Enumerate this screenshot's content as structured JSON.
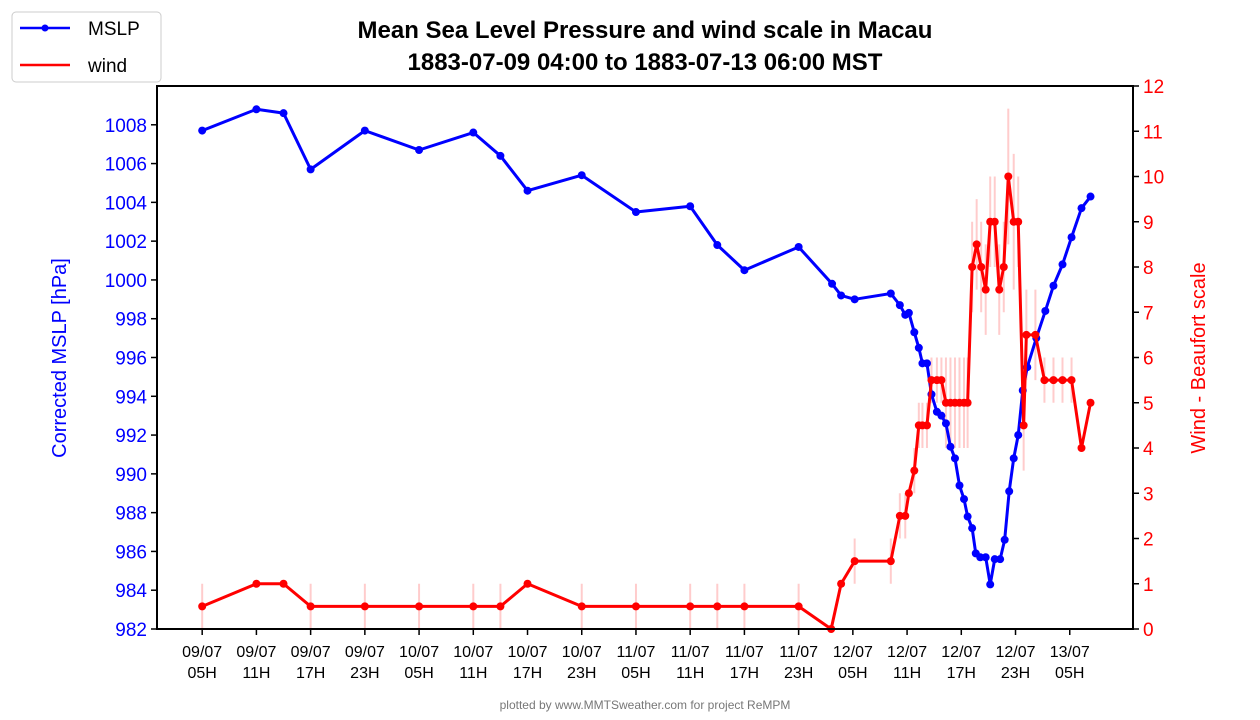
{
  "chart_data": {
    "type": "line",
    "title": "Mean Sea Level Pressure and wind scale in Macau",
    "subtitle": "1883-07-09 04:00 to 1883-07-13 06:00 MST",
    "x_units": "hours since 1883-07-09 00:00 MST",
    "xlim": [
      0,
      108
    ],
    "xticks": [
      5,
      11,
      17,
      23,
      29,
      35,
      41,
      47,
      53,
      59,
      65,
      71,
      77,
      83,
      89,
      95,
      101
    ],
    "xtick_labels": [
      [
        "09/07",
        "05H"
      ],
      [
        "09/07",
        "11H"
      ],
      [
        "09/07",
        "17H"
      ],
      [
        "09/07",
        "23H"
      ],
      [
        "10/07",
        "05H"
      ],
      [
        "10/07",
        "11H"
      ],
      [
        "10/07",
        "17H"
      ],
      [
        "10/07",
        "23H"
      ],
      [
        "11/07",
        "05H"
      ],
      [
        "11/07",
        "11H"
      ],
      [
        "11/07",
        "17H"
      ],
      [
        "11/07",
        "23H"
      ],
      [
        "12/07",
        "05H"
      ],
      [
        "12/07",
        "11H"
      ],
      [
        "12/07",
        "17H"
      ],
      [
        "12/07",
        "23H"
      ],
      [
        "13/07",
        "05H"
      ]
    ],
    "ylabel": "Corrected MSLP [hPa]",
    "ylim": [
      982,
      1010
    ],
    "yticks": [
      982,
      984,
      986,
      988,
      990,
      992,
      994,
      996,
      998,
      1000,
      1002,
      1004,
      1006,
      1008
    ],
    "y2label": "Wind - Beaufort scale",
    "y2lim": [
      0,
      12
    ],
    "y2ticks": [
      0,
      1,
      2,
      3,
      4,
      5,
      6,
      7,
      8,
      9,
      10,
      11,
      12
    ],
    "legend": {
      "position": "top-left",
      "entries": [
        "MSLP",
        "wind"
      ]
    },
    "footer": "plotted by www.MMTSweather.com for project ReMPM",
    "series": [
      {
        "name": "MSLP",
        "color": "#0000ff",
        "axis": "left",
        "x": [
          5,
          11,
          14,
          17,
          23,
          29,
          35,
          38,
          41,
          47,
          53,
          59,
          62,
          65,
          71,
          74.7,
          75.7,
          77.2,
          81.2,
          82.2,
          82.8,
          83.2,
          83.8,
          84.3,
          84.7,
          85.2,
          85.7,
          86.3,
          86.8,
          87.3,
          87.8,
          88.3,
          88.8,
          89.3,
          89.7,
          90.2,
          90.6,
          91.1,
          91.7,
          92.2,
          92.7,
          93.3,
          93.8,
          94.3,
          94.8,
          95.3,
          95.8,
          96.3,
          97.3,
          98.3,
          99.2,
          100.2,
          101.2,
          102.3,
          103.3
        ],
        "y": [
          1007.7,
          1008.8,
          1008.6,
          1005.7,
          1007.7,
          1006.7,
          1007.6,
          1006.4,
          1004.6,
          1005.4,
          1003.5,
          1003.8,
          1001.8,
          1000.5,
          1001.7,
          999.8,
          999.2,
          999.0,
          999.3,
          998.7,
          998.2,
          998.3,
          997.3,
          996.5,
          995.7,
          995.7,
          994.1,
          993.2,
          993.0,
          992.6,
          991.4,
          990.8,
          989.4,
          988.7,
          987.8,
          987.2,
          985.9,
          985.7,
          985.7,
          984.3,
          985.6,
          985.6,
          986.6,
          989.1,
          990.8,
          992.0,
          994.3,
          995.5,
          997.0,
          998.4,
          999.7,
          1000.8,
          1002.2,
          1003.7,
          1004.3
        ]
      },
      {
        "name": "wind",
        "color": "#ff0000",
        "axis": "right",
        "x": [
          5,
          11,
          14,
          17,
          23,
          29,
          35,
          38,
          41,
          47,
          53,
          59,
          62,
          65,
          71,
          74.6,
          75.7,
          77.2,
          81.2,
          82.2,
          82.8,
          83.2,
          83.8,
          84.3,
          84.7,
          85.2,
          85.7,
          86.3,
          86.8,
          87.3,
          87.8,
          88.3,
          88.8,
          89.3,
          89.7,
          90.2,
          90.7,
          91.2,
          91.7,
          92.2,
          92.7,
          93.2,
          93.7,
          94.2,
          94.8,
          95.3,
          95.9,
          96.2,
          97.2,
          98.2,
          99.2,
          100.2,
          101.2,
          102.3,
          103.3
        ],
        "y": [
          0.5,
          1,
          1,
          0.5,
          0.5,
          0.5,
          0.5,
          0.5,
          1,
          0.5,
          0.5,
          0.5,
          0.5,
          0.5,
          0.5,
          0,
          1,
          1.5,
          1.5,
          2.5,
          2.5,
          3,
          3.5,
          4.5,
          4.5,
          4.5,
          5.5,
          5.5,
          5.5,
          5,
          5,
          5,
          5,
          5,
          5,
          8,
          8.5,
          8,
          7.5,
          9,
          9,
          7.5,
          8,
          10,
          9,
          9,
          4.5,
          6.5,
          6.5,
          5.5,
          5.5,
          5.5,
          5.5,
          4,
          5
        ],
        "err": [
          0.5,
          0,
          0,
          0.5,
          0.5,
          0.5,
          0.5,
          0.5,
          0,
          0.5,
          0.5,
          0.5,
          0.5,
          0.5,
          0.5,
          0,
          0,
          0.5,
          0.5,
          0.5,
          0.5,
          0,
          0.5,
          0.5,
          0.5,
          0.5,
          0.5,
          0.5,
          0.5,
          1,
          1,
          1,
          1,
          1,
          1,
          1,
          1,
          1,
          1,
          1,
          1,
          1,
          1,
          1.5,
          1.5,
          1,
          1,
          1,
          1,
          0.5,
          0.5,
          0.5,
          0.5,
          0,
          0
        ]
      }
    ]
  }
}
